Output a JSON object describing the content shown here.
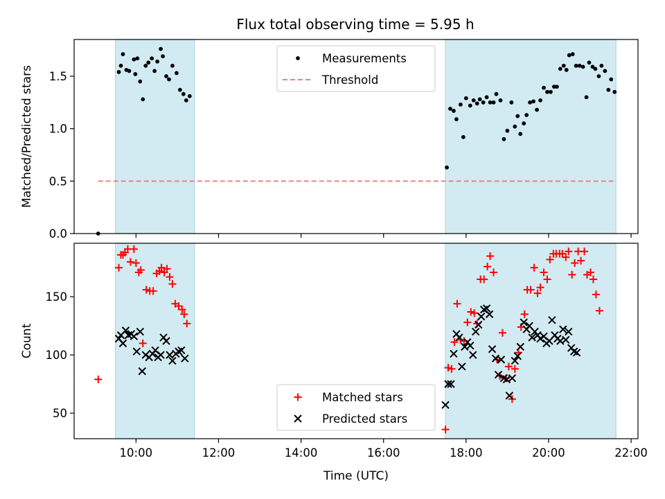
{
  "figure": {
    "title": "Flux total observing time = 5.95 h"
  },
  "colors": {
    "shade": "#add8e6",
    "measurement": "#000000",
    "threshold": "#f08080",
    "matched": "#ff0000",
    "predicted": "#000000"
  },
  "chart_data": [
    {
      "type": "scatter",
      "panel": "top",
      "ylabel": "Matched/Predicted stars",
      "xlabel": "",
      "xlim": [
        "08:30",
        "22:10"
      ],
      "ylim": [
        0,
        1.85
      ],
      "y_ticks": [
        0.0,
        0.5,
        1.0,
        1.5
      ],
      "y_tick_labels": [
        "0.0",
        "0.5",
        "1.0",
        "1.5"
      ],
      "shaded_intervals": [
        [
          "09:30",
          "11:25"
        ],
        [
          "17:30",
          "21:38"
        ]
      ],
      "legend": {
        "position": "upper center",
        "entries": [
          "Measurements",
          "Threshold"
        ]
      },
      "threshold": {
        "name": "Threshold",
        "value": 0.5,
        "x_range": [
          "09:05",
          "21:38"
        ],
        "style": "dashed"
      },
      "series": [
        {
          "name": "Measurements",
          "marker": "dot",
          "points": [
            [
              "09:05",
              0.0
            ],
            [
              "09:35",
              1.54
            ],
            [
              "09:38",
              1.6
            ],
            [
              "09:41",
              1.71
            ],
            [
              "09:46",
              1.56
            ],
            [
              "09:50",
              1.55
            ],
            [
              "09:57",
              1.66
            ],
            [
              "09:59",
              1.52
            ],
            [
              "10:02",
              1.67
            ],
            [
              "10:06",
              1.45
            ],
            [
              "10:10",
              1.28
            ],
            [
              "10:14",
              1.6
            ],
            [
              "10:18",
              1.63
            ],
            [
              "10:23",
              1.67
            ],
            [
              "10:27",
              1.55
            ],
            [
              "10:31",
              1.64
            ],
            [
              "10:36",
              1.76
            ],
            [
              "10:39",
              1.69
            ],
            [
              "10:44",
              1.5
            ],
            [
              "10:48",
              1.47
            ],
            [
              "10:53",
              1.6
            ],
            [
              "10:59",
              1.53
            ],
            [
              "11:04",
              1.37
            ],
            [
              "11:09",
              1.33
            ],
            [
              "11:13",
              1.27
            ],
            [
              "11:18",
              1.31
            ],
            [
              "17:32",
              0.63
            ],
            [
              "17:37",
              1.19
            ],
            [
              "17:42",
              1.17
            ],
            [
              "17:46",
              1.09
            ],
            [
              "17:52",
              1.23
            ],
            [
              "17:56",
              0.92
            ],
            [
              "18:00",
              1.29
            ],
            [
              "18:06",
              1.22
            ],
            [
              "18:11",
              1.27
            ],
            [
              "18:16",
              1.24
            ],
            [
              "18:20",
              1.28
            ],
            [
              "18:25",
              1.25
            ],
            [
              "18:30",
              1.3
            ],
            [
              "18:35",
              1.25
            ],
            [
              "18:40",
              1.25
            ],
            [
              "18:44",
              1.33
            ],
            [
              "18:50",
              1.27
            ],
            [
              "18:55",
              0.9
            ],
            [
              "19:00",
              0.98
            ],
            [
              "19:06",
              1.25
            ],
            [
              "19:11",
              1.02
            ],
            [
              "19:15",
              1.12
            ],
            [
              "19:19",
              0.95
            ],
            [
              "19:24",
              1.05
            ],
            [
              "19:28",
              1.13
            ],
            [
              "19:33",
              1.25
            ],
            [
              "19:38",
              1.26
            ],
            [
              "19:43",
              1.18
            ],
            [
              "19:48",
              1.27
            ],
            [
              "19:53",
              1.39
            ],
            [
              "19:58",
              1.35
            ],
            [
              "20:03",
              1.35
            ],
            [
              "20:08",
              1.4
            ],
            [
              "20:12",
              1.4
            ],
            [
              "20:17",
              1.57
            ],
            [
              "20:22",
              1.6
            ],
            [
              "20:26",
              1.56
            ],
            [
              "20:30",
              1.7
            ],
            [
              "20:35",
              1.71
            ],
            [
              "20:40",
              1.6
            ],
            [
              "20:45",
              1.6
            ],
            [
              "20:50",
              1.59
            ],
            [
              "20:55",
              1.3
            ],
            [
              "20:59",
              1.63
            ],
            [
              "21:04",
              1.59
            ],
            [
              "21:08",
              1.57
            ],
            [
              "21:13",
              1.5
            ],
            [
              "21:17",
              1.6
            ],
            [
              "21:22",
              1.55
            ],
            [
              "21:27",
              1.37
            ],
            [
              "21:31",
              1.47
            ],
            [
              "21:36",
              1.35
            ]
          ]
        }
      ]
    },
    {
      "type": "scatter",
      "panel": "bottom",
      "xlabel": "Time (UTC)",
      "ylabel": "Count",
      "xlim": [
        "08:30",
        "22:10"
      ],
      "ylim": [
        28,
        196
      ],
      "x_ticks": [
        "10:00",
        "12:00",
        "14:00",
        "16:00",
        "18:00",
        "20:00",
        "22:00"
      ],
      "y_ticks": [
        50,
        100,
        150
      ],
      "y_tick_labels": [
        "50",
        "100",
        "150"
      ],
      "shaded_intervals": [
        [
          "09:30",
          "11:25"
        ],
        [
          "17:30",
          "21:38"
        ]
      ],
      "legend": {
        "position": "lower center",
        "entries": [
          "Matched stars",
          "Predicted stars"
        ]
      },
      "series": [
        {
          "name": "Matched stars",
          "marker": "plus",
          "points": [
            [
              "09:05",
              79
            ],
            [
              "09:35",
              175
            ],
            [
              "09:38",
              186
            ],
            [
              "09:41",
              186
            ],
            [
              "09:44",
              188
            ],
            [
              "09:48",
              191
            ],
            [
              "09:52",
              180
            ],
            [
              "09:57",
              191
            ],
            [
              "10:00",
              179
            ],
            [
              "10:04",
              171
            ],
            [
              "10:07",
              173
            ],
            [
              "10:10",
              110
            ],
            [
              "10:15",
              156
            ],
            [
              "10:20",
              155
            ],
            [
              "10:25",
              155
            ],
            [
              "10:30",
              170
            ],
            [
              "10:34",
              172
            ],
            [
              "10:37",
              175
            ],
            [
              "10:41",
              171
            ],
            [
              "10:45",
              174
            ],
            [
              "10:49",
              167
            ],
            [
              "10:53",
              161
            ],
            [
              "10:57",
              144
            ],
            [
              "11:02",
              142
            ],
            [
              "11:07",
              139
            ],
            [
              "11:10",
              135
            ],
            [
              "11:14",
              127
            ],
            [
              "17:30",
              36
            ],
            [
              "17:34",
              89
            ],
            [
              "17:39",
              88
            ],
            [
              "17:43",
              111
            ],
            [
              "17:47",
              144
            ],
            [
              "17:52",
              113
            ],
            [
              "17:57",
              112
            ],
            [
              "18:02",
              128
            ],
            [
              "18:07",
              137
            ],
            [
              "18:12",
              136
            ],
            [
              "18:16",
              127
            ],
            [
              "18:21",
              165
            ],
            [
              "18:26",
              165
            ],
            [
              "18:31",
              176
            ],
            [
              "18:35",
              185
            ],
            [
              "18:40",
              171
            ],
            [
              "18:45",
              96
            ],
            [
              "18:49",
              82
            ],
            [
              "18:53",
              119
            ],
            [
              "18:58",
              80
            ],
            [
              "19:02",
              90
            ],
            [
              "19:07",
              62
            ],
            [
              "19:11",
              88
            ],
            [
              "19:16",
              102
            ],
            [
              "19:20",
              124
            ],
            [
              "19:25",
              135
            ],
            [
              "19:29",
              156
            ],
            [
              "19:34",
              156
            ],
            [
              "19:39",
              175
            ],
            [
              "19:44",
              153
            ],
            [
              "19:48",
              158
            ],
            [
              "19:53",
              171
            ],
            [
              "19:58",
              165
            ],
            [
              "20:02",
              182
            ],
            [
              "20:07",
              187
            ],
            [
              "20:11",
              187
            ],
            [
              "20:16",
              187
            ],
            [
              "20:20",
              187
            ],
            [
              "20:25",
              184
            ],
            [
              "20:29",
              189
            ],
            [
              "20:34",
              169
            ],
            [
              "20:38",
              179
            ],
            [
              "20:43",
              189
            ],
            [
              "20:47",
              181
            ],
            [
              "20:52",
              189
            ],
            [
              "20:56",
              169
            ],
            [
              "21:01",
              171
            ],
            [
              "21:05",
              165
            ],
            [
              "21:09",
              152
            ],
            [
              "21:14",
              138
            ]
          ]
        },
        {
          "name": "Predicted stars",
          "marker": "x",
          "points": [
            [
              "09:35",
              114
            ],
            [
              "09:38",
              117
            ],
            [
              "09:41",
              110
            ],
            [
              "09:45",
              121
            ],
            [
              "09:49",
              117
            ],
            [
              "09:53",
              118
            ],
            [
              "09:57",
              116
            ],
            [
              "10:01",
              103
            ],
            [
              "10:06",
              120
            ],
            [
              "10:09",
              86
            ],
            [
              "10:14",
              100
            ],
            [
              "10:19",
              98
            ],
            [
              "10:24",
              101
            ],
            [
              "10:28",
              104
            ],
            [
              "10:32",
              98
            ],
            [
              "10:36",
              100
            ],
            [
              "10:40",
              115
            ],
            [
              "10:44",
              112
            ],
            [
              "10:49",
              100
            ],
            [
              "10:53",
              95
            ],
            [
              "10:58",
              101
            ],
            [
              "11:02",
              103
            ],
            [
              "11:06",
              104
            ],
            [
              "11:11",
              97
            ],
            [
              "17:30",
              57
            ],
            [
              "17:34",
              75
            ],
            [
              "17:38",
              75
            ],
            [
              "17:42",
              101
            ],
            [
              "17:46",
              118
            ],
            [
              "17:50",
              115
            ],
            [
              "17:54",
              90
            ],
            [
              "17:58",
              107
            ],
            [
              "18:02",
              111
            ],
            [
              "18:06",
              108
            ],
            [
              "18:10",
              100
            ],
            [
              "18:14",
              120
            ],
            [
              "18:18",
              126
            ],
            [
              "18:22",
              133
            ],
            [
              "18:26",
              139
            ],
            [
              "18:30",
              140
            ],
            [
              "18:34",
              135
            ],
            [
              "18:38",
              105
            ],
            [
              "18:43",
              97
            ],
            [
              "18:47",
              83
            ],
            [
              "18:51",
              96
            ],
            [
              "18:55",
              80
            ],
            [
              "18:59",
              79
            ],
            [
              "19:03",
              65
            ],
            [
              "19:07",
              80
            ],
            [
              "19:11",
              95
            ],
            [
              "19:15",
              99
            ],
            [
              "19:19",
              107
            ],
            [
              "19:24",
              128
            ],
            [
              "19:28",
              122
            ],
            [
              "19:32",
              125
            ],
            [
              "19:36",
              115
            ],
            [
              "19:40",
              120
            ],
            [
              "19:44",
              117
            ],
            [
              "19:48",
              114
            ],
            [
              "19:53",
              116
            ],
            [
              "19:57",
              110
            ],
            [
              "20:01",
              112
            ],
            [
              "20:05",
              130
            ],
            [
              "20:09",
              117
            ],
            [
              "20:13",
              114
            ],
            [
              "20:17",
              112
            ],
            [
              "20:21",
              122
            ],
            [
              "20:25",
              113
            ],
            [
              "20:29",
              120
            ],
            [
              "20:33",
              106
            ],
            [
              "20:37",
              103
            ],
            [
              "20:41",
              102
            ]
          ]
        }
      ]
    }
  ]
}
